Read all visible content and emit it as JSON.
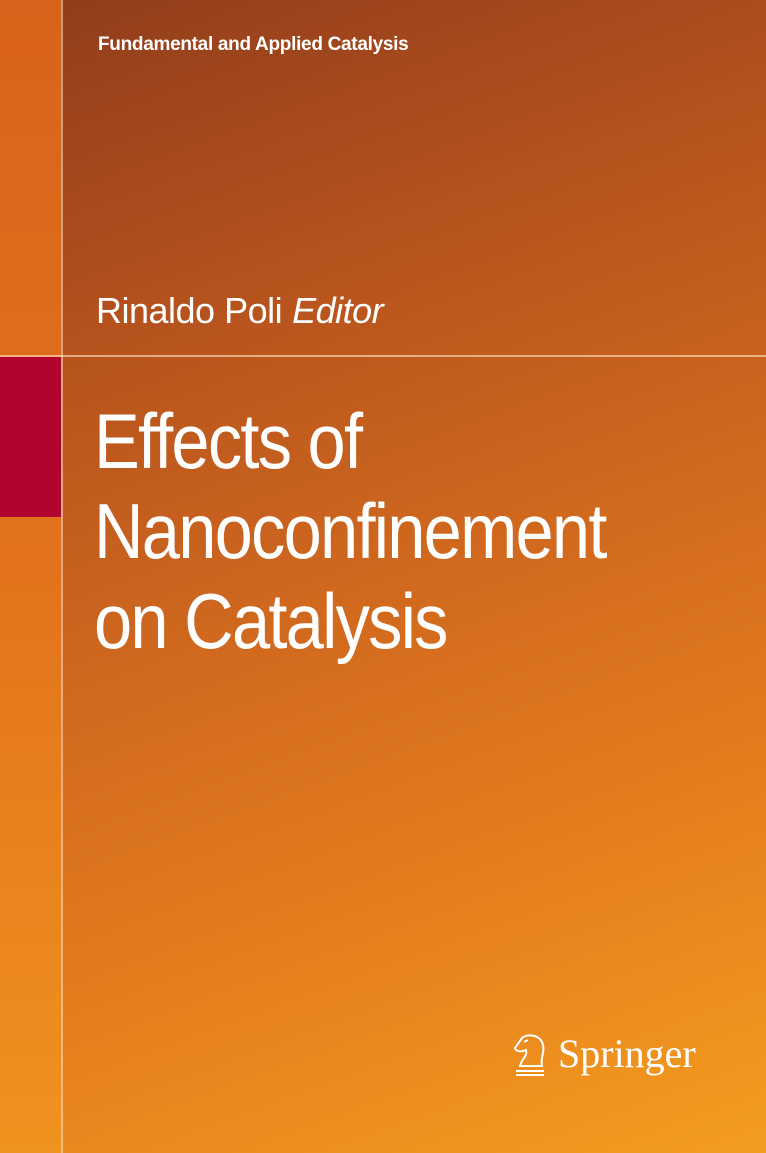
{
  "series": "Fundamental and Applied Catalysis",
  "editor": {
    "name": "Rinaldo Poli",
    "role": "Editor"
  },
  "title_lines": [
    "Effects of",
    "Nanoconfinement",
    "on Catalysis"
  ],
  "publisher": {
    "name": "Springer",
    "logo_icon": "knight-horse-icon"
  },
  "colors": {
    "accent_block": "#b0052e",
    "background_top": "#8e3c1c",
    "background_bottom": "#f49d1f",
    "text": "#ffffff"
  }
}
